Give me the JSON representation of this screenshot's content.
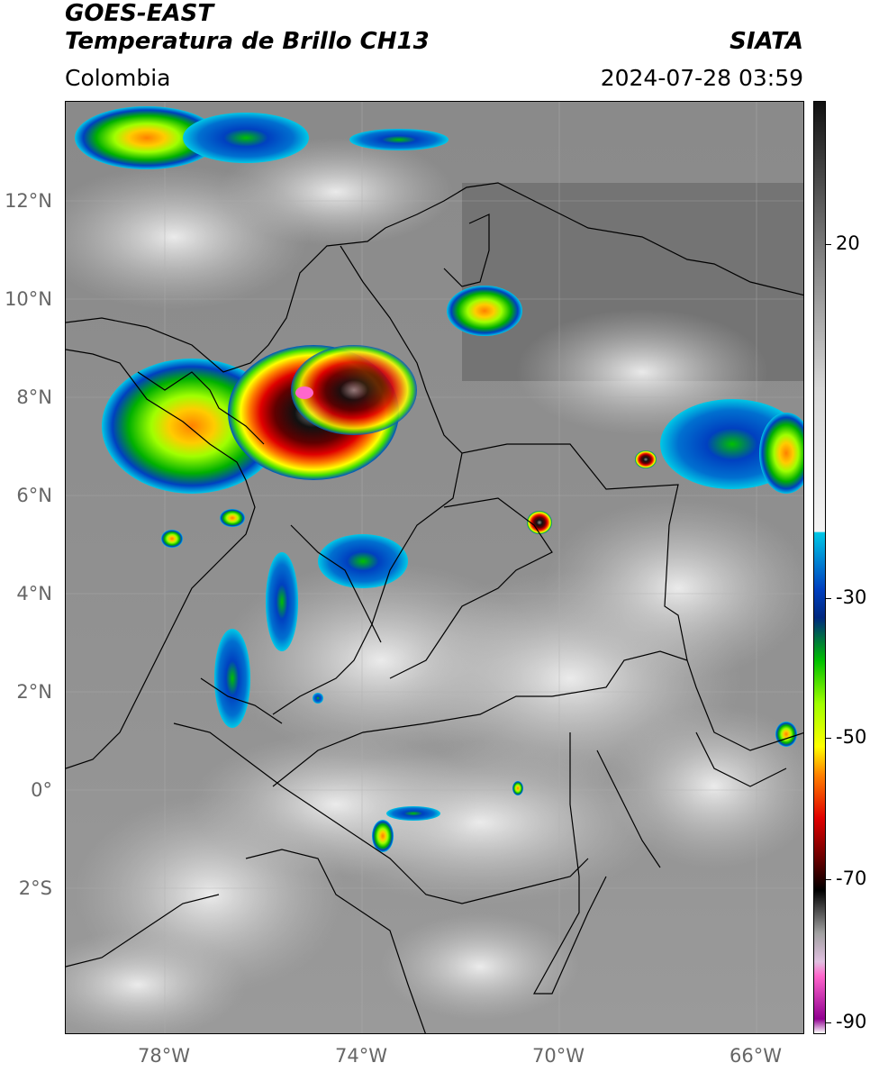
{
  "header": {
    "title_line1": "GOES-EAST",
    "title_line2": "Temperatura de Brillo CH13",
    "subtitle": "Colombia",
    "brand": "SIATA",
    "timestamp": "2024-07-28 03:59"
  },
  "map": {
    "lat_ticks": [
      "12°N",
      "10°N",
      "8°N",
      "6°N",
      "4°N",
      "2°N",
      "0°",
      "2°S"
    ],
    "lon_ticks": [
      "78°W",
      "74°W",
      "70°W",
      "66°W"
    ]
  },
  "colorbar": {
    "labels": [
      "20",
      "-30",
      "-50",
      "-70",
      "-90"
    ],
    "stops": [
      {
        "v": 40,
        "c": "#111111"
      },
      {
        "v": 20,
        "c": "#7a7a7a"
      },
      {
        "v": 0,
        "c": "#d8d8d8"
      },
      {
        "v": -20,
        "c": "#f4f4f4"
      },
      {
        "v": -20.1,
        "c": "#00c8e6"
      },
      {
        "v": -28,
        "c": "#0040c0"
      },
      {
        "v": -32,
        "c": "#002880"
      },
      {
        "v": -38,
        "c": "#00c000"
      },
      {
        "v": -44,
        "c": "#a0ff00"
      },
      {
        "v": -50,
        "c": "#ffff00"
      },
      {
        "v": -54,
        "c": "#ff8000"
      },
      {
        "v": -60,
        "c": "#e00000"
      },
      {
        "v": -66,
        "c": "#600000"
      },
      {
        "v": -70,
        "c": "#000000"
      },
      {
        "v": -76,
        "c": "#a0a0a0"
      },
      {
        "v": -80,
        "c": "#e0c0e0"
      },
      {
        "v": -82,
        "c": "#ff66cc"
      },
      {
        "v": -88,
        "c": "#900090"
      },
      {
        "v": -90,
        "c": "#ffffff"
      }
    ]
  },
  "colors": {
    "cloud_warm": "#6a6a6a",
    "cloud_cold": "#e8e8e8",
    "border": "#000000",
    "grid": "#b0b0b0"
  }
}
